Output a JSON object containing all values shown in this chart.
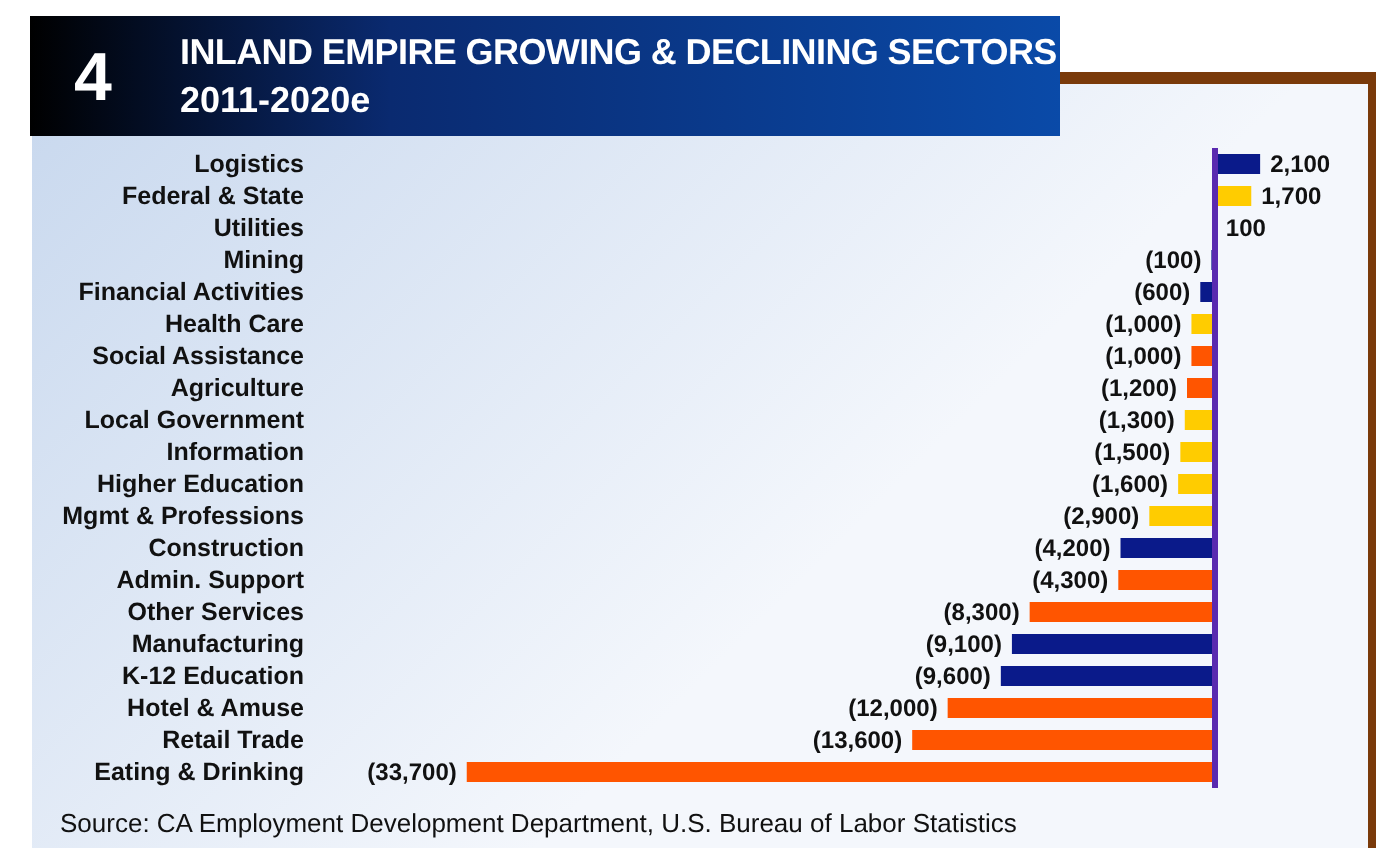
{
  "chart_data": {
    "type": "bar",
    "orientation": "horizontal",
    "title": "INLAND EMPIRE GROWING & DECLINING SECTORS",
    "subtitle": "2011-2020e",
    "annotations": [
      "4",
      "Source:  CA Employment Development Department, U.S. Bureau of Labor Statistics"
    ],
    "categories": [
      "Logistics",
      "Federal & State",
      "Utilities",
      "Mining",
      "Financial Activities",
      "Health Care",
      "Social Assistance",
      "Agriculture",
      "Local Government",
      "Information",
      "Higher Education",
      "Mgmt & Professions",
      "Construction",
      "Admin. Support",
      "Other Services",
      "Manufacturing",
      "K-12 Education",
      "Hotel & Amuse",
      "Retail Trade",
      "Eating & Drinking"
    ],
    "values": [
      2100,
      1700,
      100,
      -100,
      -600,
      -1000,
      -1000,
      -1200,
      -1300,
      -1500,
      -1600,
      -2900,
      -4200,
      -4300,
      -8300,
      -9100,
      -9600,
      -12000,
      -13600,
      -33700
    ],
    "value_labels": [
      "2,100",
      "1,700",
      "100",
      "(100)",
      "(600)",
      "(1,000)",
      "(1,000)",
      "(1,200)",
      "(1,300)",
      "(1,500)",
      "(1,600)",
      "(2,900)",
      "(4,200)",
      "(4,300)",
      "(8,300)",
      "(9,100)",
      "(9,600)",
      "(12,000)",
      "(13,600)",
      "(33,700)"
    ],
    "colors": [
      "#0a1a8a",
      "#ffcc00",
      "#ffcc00",
      "#0a1a8a",
      "#0a1a8a",
      "#ffcc00",
      "#ff5500",
      "#ff5500",
      "#ffcc00",
      "#ffcc00",
      "#ffcc00",
      "#ffcc00",
      "#0a1a8a",
      "#ff5500",
      "#ff5500",
      "#0a1a8a",
      "#0a1a8a",
      "#ff5500",
      "#ff5500",
      "#ff5500"
    ],
    "ref_lines": [
      {
        "axis": "x",
        "value": 0,
        "color": "#5a2ab0"
      }
    ],
    "grid": false
  }
}
